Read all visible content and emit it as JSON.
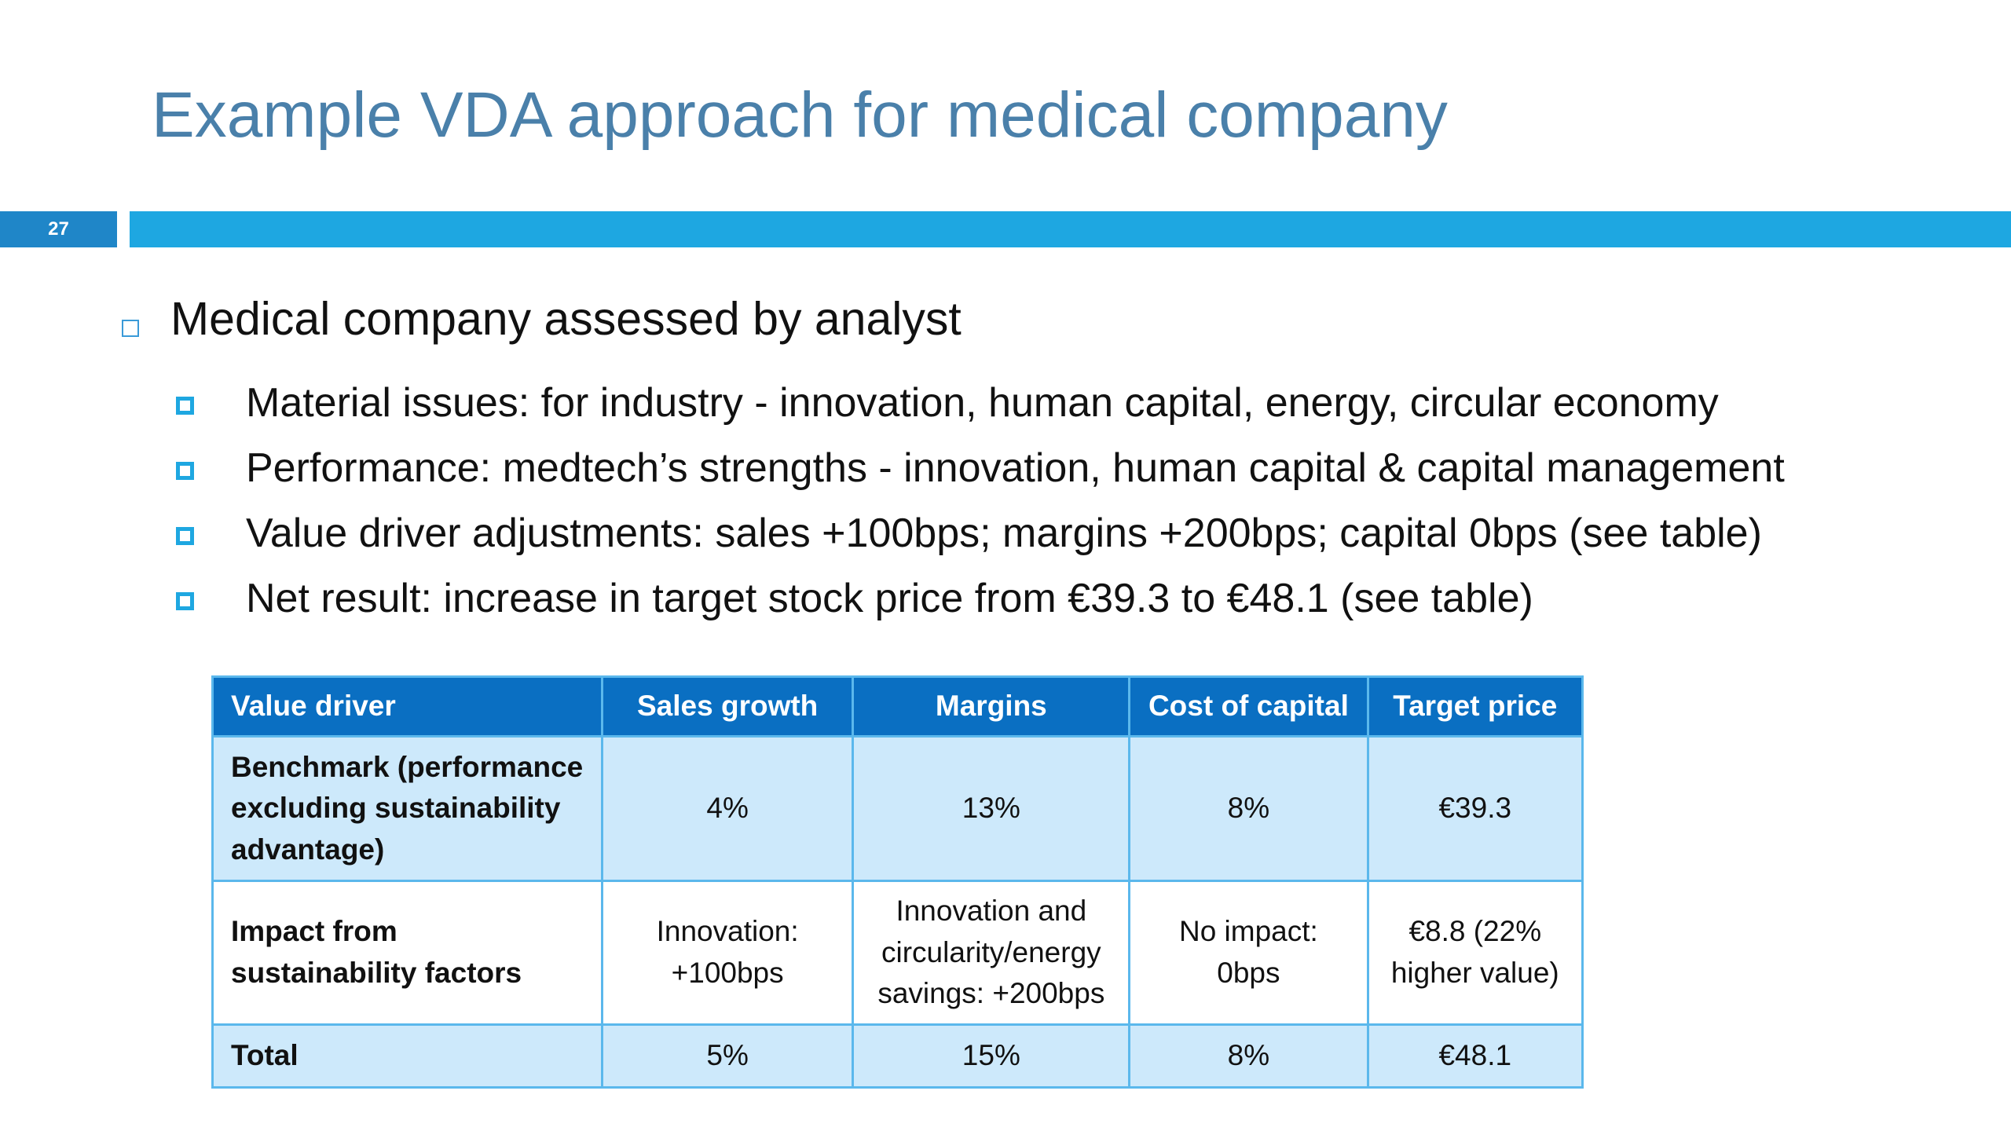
{
  "title": "Example VDA approach for medical company",
  "slide_number": "27",
  "bullet": {
    "text": "Medical company assessed by analyst",
    "items": [
      "Material issues: for industry - innovation, human capital, energy, circular economy",
      "Performance: medtech’s strengths - innovation, human capital & capital management",
      "Value driver adjustments: sales +100bps; margins +200bps; capital 0bps (see table)",
      "Net result: increase in target stock price from €39.3 to €48.1 (see table)"
    ]
  },
  "table": {
    "header": [
      "Value driver",
      "Sales growth",
      "Margins",
      "Cost of capital",
      "Target price"
    ],
    "rows": [
      [
        "Benchmark (performance excluding sustainability advantage)",
        "4%",
        "13%",
        "8%",
        "€39.3"
      ],
      [
        "Impact from sustainability factors",
        "Innovation: +100bps",
        "Innovation and circularity/energy savings: +200bps",
        "No impact: 0bps",
        "€8.8 (22% higher value)"
      ],
      [
        "Total",
        "5%",
        "15%",
        "8%",
        "€48.1"
      ]
    ]
  }
}
